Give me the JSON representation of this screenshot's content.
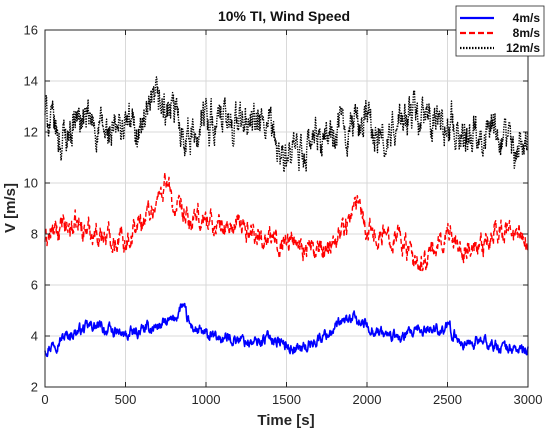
{
  "chart_data": {
    "type": "line",
    "title": "10% TI, Wind Speed",
    "xlabel": "Time [s]",
    "ylabel": "V [m/s]",
    "xlim": [
      0,
      3000
    ],
    "ylim": [
      2,
      16
    ],
    "xticks": [
      0,
      500,
      1000,
      1500,
      2000,
      2500,
      3000
    ],
    "yticks": [
      2,
      4,
      6,
      8,
      10,
      12,
      14,
      16
    ],
    "grid": true,
    "legend_position": "top-right",
    "series": [
      {
        "name": "4m/s",
        "color": "#0000ff",
        "style": "solid",
        "x": [
          0,
          100,
          200,
          300,
          400,
          500,
          600,
          700,
          800,
          850,
          900,
          1000,
          1100,
          1200,
          1300,
          1400,
          1500,
          1600,
          1700,
          1800,
          1900,
          2000,
          2100,
          2200,
          2300,
          2400,
          2500,
          2600,
          2700,
          2800,
          2900,
          3000
        ],
        "y": [
          3.5,
          3.9,
          4.2,
          4.4,
          4.2,
          4.0,
          4.2,
          4.4,
          4.6,
          5.2,
          4.4,
          4.0,
          3.9,
          3.9,
          3.7,
          4.0,
          3.6,
          3.5,
          3.9,
          4.3,
          4.7,
          4.4,
          4.1,
          3.9,
          4.1,
          4.3,
          4.3,
          3.7,
          3.8,
          3.6,
          3.5,
          3.4
        ]
      },
      {
        "name": "8m/s",
        "color": "#ff0000",
        "style": "dashed",
        "x": [
          0,
          100,
          200,
          300,
          400,
          500,
          600,
          700,
          750,
          800,
          900,
          1000,
          1100,
          1200,
          1300,
          1400,
          1500,
          1600,
          1700,
          1800,
          1900,
          1950,
          2000,
          2100,
          2200,
          2300,
          2400,
          2500,
          2600,
          2700,
          2800,
          2900,
          3000
        ],
        "y": [
          7.8,
          8.2,
          8.3,
          8.1,
          7.9,
          7.8,
          8.5,
          9.3,
          10.2,
          9.0,
          8.4,
          8.6,
          8.2,
          8.3,
          8.1,
          7.7,
          7.8,
          7.6,
          7.2,
          7.9,
          8.6,
          9.6,
          8.2,
          7.9,
          8.1,
          6.6,
          7.2,
          8.1,
          7.5,
          7.2,
          8.2,
          8.0,
          7.7
        ]
      },
      {
        "name": "12m/s",
        "color": "#000000",
        "style": "dotted",
        "x": [
          0,
          100,
          200,
          300,
          400,
          500,
          600,
          700,
          800,
          900,
          1000,
          1100,
          1200,
          1300,
          1400,
          1500,
          1600,
          1700,
          1800,
          1900,
          2000,
          2100,
          2200,
          2300,
          2400,
          2500,
          2600,
          2700,
          2800,
          2900,
          3000
        ],
        "y": [
          12.8,
          11.6,
          12.6,
          12.2,
          11.8,
          12.3,
          12.1,
          13.1,
          12.7,
          11.8,
          12.6,
          12.3,
          12.4,
          12.3,
          12.0,
          10.7,
          11.2,
          11.7,
          11.9,
          12.3,
          12.6,
          11.4,
          12.3,
          12.7,
          12.2,
          12.4,
          11.9,
          12.3,
          11.7,
          11.3,
          11.8
        ]
      }
    ]
  }
}
